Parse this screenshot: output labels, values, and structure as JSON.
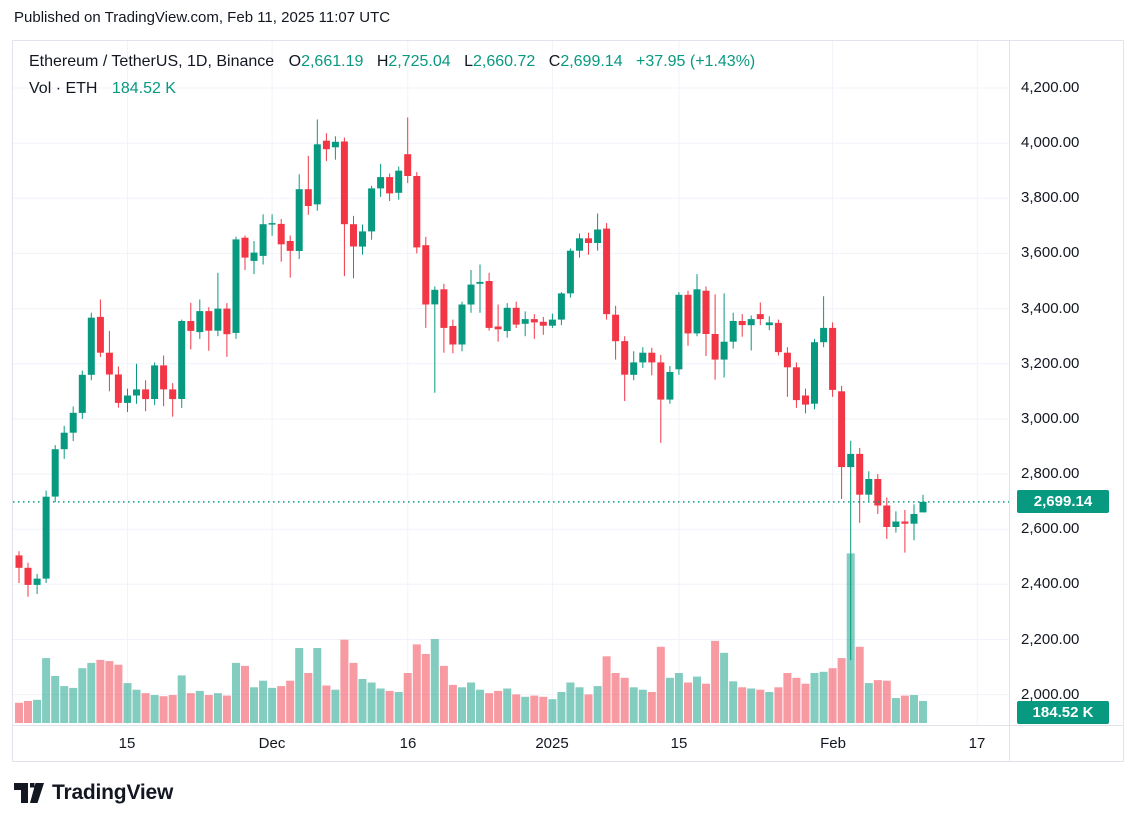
{
  "published_line": "Published on TradingView.com, Feb 11, 2025 11:07 UTC",
  "legend": {
    "symbol_title": "Ethereum / TetherUS, 1D, Binance",
    "o_label": "O",
    "o_value": "2,661.19",
    "h_label": "H",
    "h_value": "2,725.04",
    "l_label": "L",
    "l_value": "2,660.72",
    "c_label": "C",
    "c_value": "2,699.14",
    "change_text": "+37.95 (+1.43%)",
    "vol_label": "Vol · ETH",
    "vol_value": "184.52 K"
  },
  "price_axis_badge": "2,699.14",
  "volume_axis_badge": "184.52 K",
  "footer": {
    "brand": "TradingView"
  },
  "colors": {
    "up": "#089981",
    "down": "#f23645",
    "vol_up": "rgba(8,153,129,0.5)",
    "vol_down": "rgba(242,54,69,0.5)",
    "grid": "#f0f3fa",
    "axis_border": "#e0e3eb",
    "text": "#131722",
    "badge_bg": "#089981",
    "current_price_line": "#089981"
  },
  "chart_data": {
    "type": "candlestick+volume",
    "title": "Ethereum / TetherUS, 1D, Binance",
    "symbol": "ETHUSDT",
    "interval": "1D",
    "exchange": "Binance",
    "start_date": "2024-11-03",
    "end_date": "2025-02-11",
    "current_price": 2699.14,
    "last_volume_k": 184.52,
    "price_axis_ticks": [
      {
        "value": 4200,
        "label": "4,200.00"
      },
      {
        "value": 4000,
        "label": "4,000.00"
      },
      {
        "value": 3800,
        "label": "3,800.00"
      },
      {
        "value": 3600,
        "label": "3,600.00"
      },
      {
        "value": 3400,
        "label": "3,400.00"
      },
      {
        "value": 3200,
        "label": "3,200.00"
      },
      {
        "value": 3000,
        "label": "3,000.00"
      },
      {
        "value": 2800,
        "label": "2,800.00"
      },
      {
        "value": 2600,
        "label": "2,600.00"
      },
      {
        "value": 2400,
        "label": "2,400.00"
      },
      {
        "value": 2200,
        "label": "2,200.00"
      },
      {
        "value": 2000,
        "label": "2,000.00"
      }
    ],
    "x_axis_ticks": [
      {
        "day_index": 12,
        "label": "15"
      },
      {
        "day_index": 28,
        "label": "Dec"
      },
      {
        "day_index": 43,
        "label": "16"
      },
      {
        "day_index": 59,
        "label": "2025"
      },
      {
        "day_index": 73,
        "label": "15"
      },
      {
        "day_index": 90,
        "label": "Feb"
      },
      {
        "day_index": 106,
        "label": "17"
      }
    ],
    "ylim": [
      2000,
      4200
    ],
    "grid": true,
    "candles_format": [
      "open",
      "high",
      "low",
      "close",
      "volume_k"
    ],
    "candles": [
      [
        2505,
        2520,
        2405,
        2460,
        170
      ],
      [
        2460,
        2478,
        2355,
        2398,
        185
      ],
      [
        2398,
        2438,
        2365,
        2421,
        195
      ],
      [
        2421,
        2740,
        2405,
        2718,
        545
      ],
      [
        2718,
        2905,
        2698,
        2890,
        395
      ],
      [
        2890,
        2975,
        2855,
        2950,
        310
      ],
      [
        2950,
        3045,
        2920,
        3022,
        295
      ],
      [
        3022,
        3175,
        3000,
        3160,
        460
      ],
      [
        3160,
        3385,
        3140,
        3367,
        505
      ],
      [
        3370,
        3433,
        3225,
        3240,
        530
      ],
      [
        3240,
        3319,
        3100,
        3161,
        520
      ],
      [
        3161,
        3190,
        3041,
        3058,
        490
      ],
      [
        3058,
        3110,
        3025,
        3085,
        335
      ],
      [
        3085,
        3200,
        3055,
        3107,
        280
      ],
      [
        3107,
        3140,
        3028,
        3072,
        250
      ],
      [
        3072,
        3205,
        3050,
        3194,
        235
      ],
      [
        3194,
        3230,
        3046,
        3107,
        225
      ],
      [
        3107,
        3130,
        3008,
        3072,
        235
      ],
      [
        3072,
        3360,
        3040,
        3355,
        400
      ],
      [
        3355,
        3421,
        3252,
        3319,
        250
      ],
      [
        3315,
        3433,
        3290,
        3391,
        270
      ],
      [
        3391,
        3405,
        3247,
        3320,
        235
      ],
      [
        3320,
        3530,
        3300,
        3400,
        250
      ],
      [
        3400,
        3420,
        3225,
        3307,
        230
      ],
      [
        3312,
        3661,
        3290,
        3651,
        505
      ],
      [
        3657,
        3665,
        3540,
        3585,
        480
      ],
      [
        3573,
        3645,
        3525,
        3603,
        300
      ],
      [
        3591,
        3742,
        3560,
        3706,
        355
      ],
      [
        3707,
        3742,
        3664,
        3710,
        295
      ],
      [
        3707,
        3725,
        3570,
        3633,
        310
      ],
      [
        3645,
        3665,
        3512,
        3609,
        355
      ],
      [
        3609,
        3887,
        3580,
        3833,
        630
      ],
      [
        3833,
        3954,
        3740,
        3772,
        420
      ],
      [
        3778,
        4086,
        3755,
        3996,
        630
      ],
      [
        4009,
        4036,
        3935,
        3978,
        315
      ],
      [
        3985,
        4025,
        3940,
        4005,
        280
      ],
      [
        4006,
        4020,
        3518,
        3706,
        700
      ],
      [
        3706,
        3736,
        3510,
        3625,
        505
      ],
      [
        3625,
        3705,
        3595,
        3680,
        370
      ],
      [
        3680,
        3845,
        3650,
        3836,
        340
      ],
      [
        3836,
        3925,
        3805,
        3877,
        290
      ],
      [
        3877,
        3890,
        3790,
        3818,
        270
      ],
      [
        3820,
        3915,
        3795,
        3900,
        260
      ],
      [
        3960,
        4093,
        3855,
        3881,
        420
      ],
      [
        3881,
        3895,
        3600,
        3622,
        660
      ],
      [
        3630,
        3660,
        3330,
        3415,
        580
      ],
      [
        3415,
        3480,
        3095,
        3468,
        705
      ],
      [
        3470,
        3490,
        3240,
        3330,
        480
      ],
      [
        3337,
        3360,
        3238,
        3270,
        320
      ],
      [
        3270,
        3425,
        3245,
        3415,
        300
      ],
      [
        3415,
        3540,
        3385,
        3487,
        340
      ],
      [
        3490,
        3560,
        3385,
        3497,
        280
      ],
      [
        3500,
        3530,
        3320,
        3330,
        250
      ],
      [
        3335,
        3415,
        3280,
        3325,
        270
      ],
      [
        3319,
        3420,
        3295,
        3403,
        290
      ],
      [
        3403,
        3425,
        3330,
        3342,
        240
      ],
      [
        3345,
        3390,
        3300,
        3362,
        220
      ],
      [
        3362,
        3380,
        3290,
        3350,
        230
      ],
      [
        3352,
        3370,
        3305,
        3338,
        220
      ],
      [
        3338,
        3382,
        3330,
        3360,
        200
      ],
      [
        3360,
        3460,
        3340,
        3455,
        260
      ],
      [
        3455,
        3618,
        3440,
        3610,
        340
      ],
      [
        3610,
        3672,
        3585,
        3655,
        300
      ],
      [
        3655,
        3675,
        3595,
        3638,
        240
      ],
      [
        3638,
        3745,
        3610,
        3687,
        310
      ],
      [
        3690,
        3710,
        3360,
        3380,
        560
      ],
      [
        3378,
        3410,
        3215,
        3282,
        420
      ],
      [
        3282,
        3300,
        3065,
        3160,
        380
      ],
      [
        3160,
        3245,
        3140,
        3205,
        300
      ],
      [
        3205,
        3260,
        3185,
        3240,
        280
      ],
      [
        3240,
        3258,
        3158,
        3205,
        260
      ],
      [
        3205,
        3232,
        2913,
        3070,
        640
      ],
      [
        3070,
        3192,
        3055,
        3170,
        380
      ],
      [
        3180,
        3460,
        3160,
        3450,
        420
      ],
      [
        3450,
        3465,
        3265,
        3310,
        340
      ],
      [
        3310,
        3525,
        3300,
        3470,
        390
      ],
      [
        3465,
        3480,
        3228,
        3308,
        330
      ],
      [
        3308,
        3452,
        3142,
        3215,
        690
      ],
      [
        3215,
        3455,
        3150,
        3280,
        590
      ],
      [
        3280,
        3385,
        3255,
        3355,
        350
      ],
      [
        3355,
        3380,
        3298,
        3340,
        300
      ],
      [
        3340,
        3375,
        3248,
        3362,
        290
      ],
      [
        3380,
        3422,
        3340,
        3362,
        280
      ],
      [
        3340,
        3372,
        3322,
        3350,
        260
      ],
      [
        3348,
        3360,
        3230,
        3242,
        300
      ],
      [
        3240,
        3260,
        3080,
        3187,
        420
      ],
      [
        3187,
        3205,
        3040,
        3068,
        380
      ],
      [
        3085,
        3110,
        3020,
        3052,
        330
      ],
      [
        3055,
        3290,
        3035,
        3278,
        420
      ],
      [
        3278,
        3445,
        3260,
        3330,
        430
      ],
      [
        3330,
        3350,
        3080,
        3105,
        460
      ],
      [
        3100,
        3120,
        2710,
        2825,
        545
      ],
      [
        2825,
        2921,
        2125,
        2873,
        1425
      ],
      [
        2873,
        2895,
        2623,
        2725,
        640
      ],
      [
        2725,
        2810,
        2700,
        2782,
        335
      ],
      [
        2782,
        2800,
        2655,
        2686,
        360
      ],
      [
        2686,
        2715,
        2565,
        2608,
        355
      ],
      [
        2608,
        2665,
        2588,
        2628,
        210
      ],
      [
        2628,
        2670,
        2515,
        2620,
        230
      ],
      [
        2620,
        2690,
        2560,
        2655,
        235
      ],
      [
        2661.19,
        2725.04,
        2660.72,
        2699.14,
        184.52
      ]
    ]
  }
}
